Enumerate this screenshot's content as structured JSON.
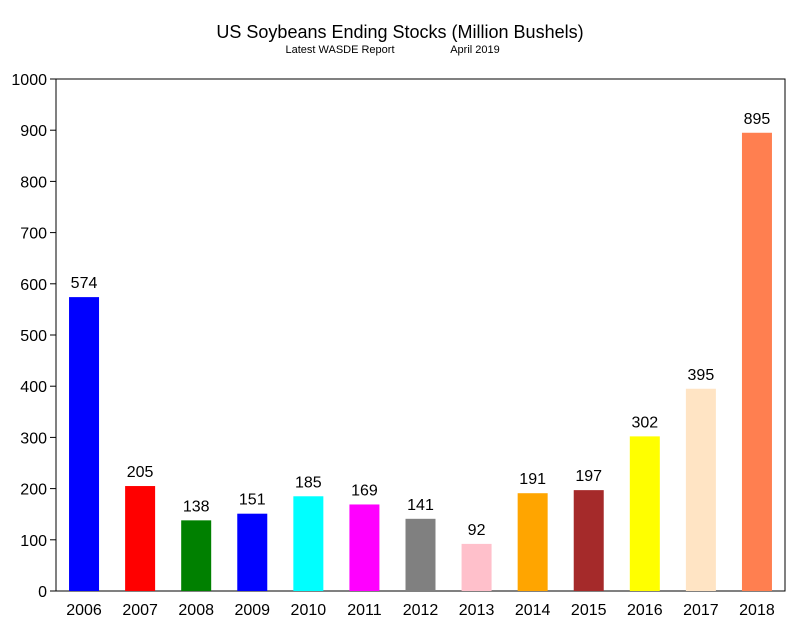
{
  "chart_data": {
    "type": "bar",
    "title": "US Soybeans Ending Stocks (Million Bushels)",
    "subtitle_left": "Latest WASDE Report",
    "subtitle_right": "April 2019",
    "categories": [
      "2006",
      "2007",
      "2008",
      "2009",
      "2010",
      "2011",
      "2012",
      "2013",
      "2014",
      "2015",
      "2016",
      "2017",
      "2018"
    ],
    "values": [
      574,
      205,
      138,
      151,
      185,
      169,
      141,
      92,
      191,
      197,
      302,
      395,
      895
    ],
    "colors": [
      "#0000ff",
      "#ff0000",
      "#008000",
      "#0000ff",
      "#00ffff",
      "#ff00ff",
      "#808080",
      "#ffc0cb",
      "#ffa500",
      "#a52a2a",
      "#ffff00",
      "#ffe4c4",
      "#ff7f50"
    ],
    "data_labels": [
      "574",
      "205",
      "138",
      "151",
      "185",
      "169",
      "141",
      "92",
      "191",
      "197",
      "302",
      "395",
      "895"
    ],
    "ylim": [
      0,
      1000
    ],
    "yticks": [
      0,
      100,
      200,
      300,
      400,
      500,
      600,
      700,
      800,
      900,
      1000
    ],
    "xlabel": "",
    "ylabel": "",
    "grid": false,
    "legend": "none"
  }
}
